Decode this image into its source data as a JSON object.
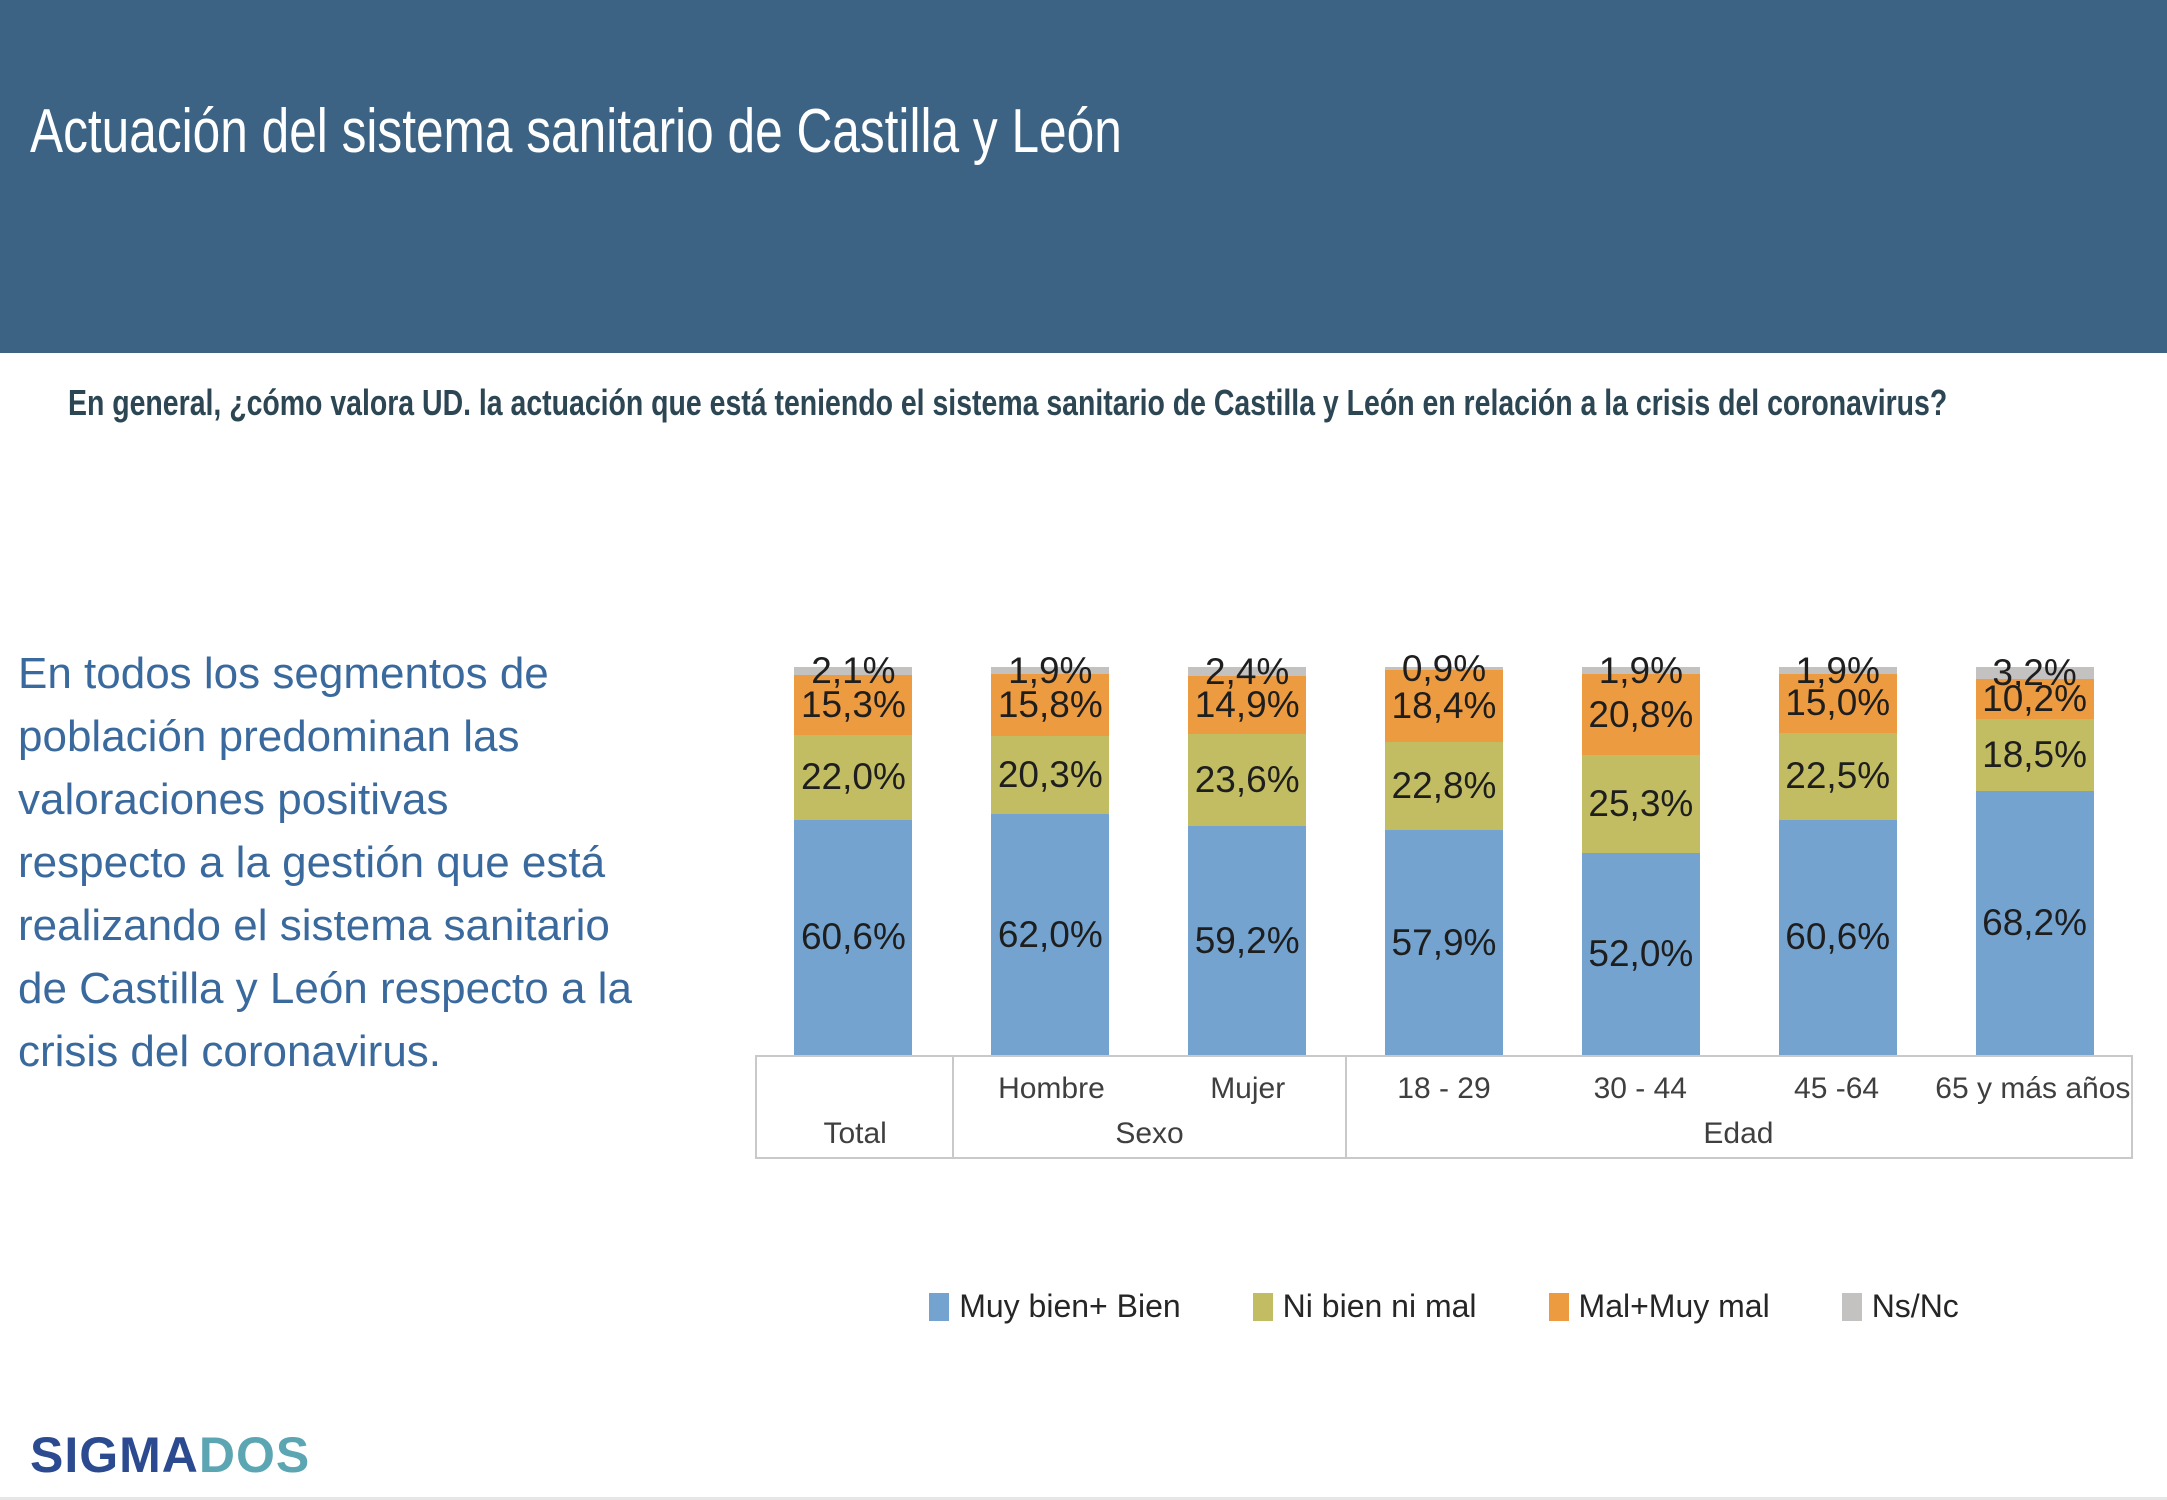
{
  "header": {
    "title": "Actuación del sistema sanitario de Castilla y León"
  },
  "question": "En general, ¿cómo valora UD. la actuación que está teniendo el sistema sanitario de Castilla y León en relación a la crisis del coronavirus?",
  "commentary": "En todos los segmentos de\npoblación predominan las\nvaloraciones positivas\nrespecto a la gestión que está\nrealizando el sistema sanitario\nde Castilla y León respecto a la\ncrisis del coronavirus.",
  "logo": {
    "part1": "SIGMA",
    "part2": "DOS"
  },
  "colors": {
    "header_background": "#3D6384",
    "question_text": "#2C4653",
    "commentary_text": "#3A6A9D",
    "axis_border": "#C9C9C9",
    "value_label": "#1E1E1E"
  },
  "chart_data": {
    "type": "bar",
    "subtype": "stacked-100-percent",
    "categories": [
      "Total",
      "Hombre",
      "Mujer",
      "18 - 29",
      "30 - 44",
      "45 -64",
      "65 y más años"
    ],
    "groups": [
      {
        "label": "Total",
        "span": 1
      },
      {
        "label": "Sexo",
        "span": 2
      },
      {
        "label": "Edad",
        "span": 4
      }
    ],
    "series": [
      {
        "name": "Muy bien+ Bien",
        "color": "#74A3CF",
        "values": [
          60.6,
          62.0,
          59.2,
          57.9,
          52.0,
          60.6,
          68.2
        ]
      },
      {
        "name": "Ni bien ni mal",
        "color": "#C2BD62",
        "values": [
          22.0,
          20.3,
          23.6,
          22.8,
          25.3,
          22.5,
          18.5
        ]
      },
      {
        "name": "Mal+Muy mal",
        "color": "#EC9B40",
        "values": [
          15.3,
          15.8,
          14.9,
          18.4,
          20.8,
          15.0,
          10.2
        ]
      },
      {
        "name": "Ns/Nc",
        "color": "#C3C2C1",
        "values": [
          2.1,
          1.9,
          2.4,
          0.9,
          1.9,
          1.9,
          3.2
        ]
      }
    ],
    "ylim": [
      0,
      100
    ],
    "value_label_format": "0,0%",
    "grid": false,
    "legend_position": "bottom"
  }
}
